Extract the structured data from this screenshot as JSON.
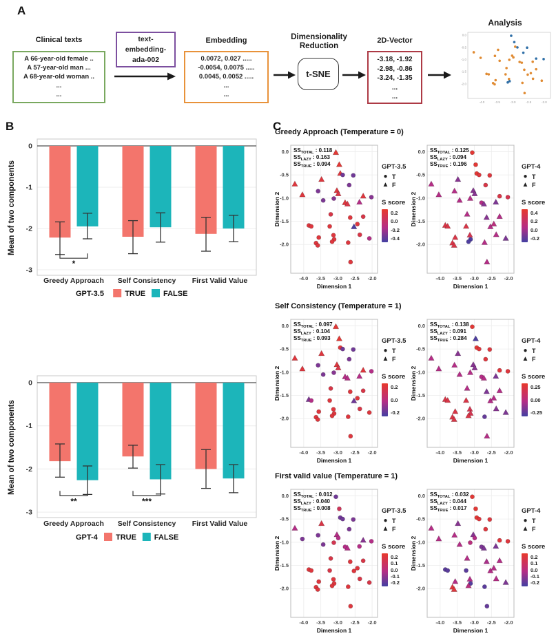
{
  "panel_a": {
    "label": "A",
    "clinical": {
      "title": "Clinical texts",
      "lines": [
        "A 66-year-old female ..",
        "A 57-year-old man ...",
        "A 68-year-old woman ..",
        "...",
        "..."
      ],
      "border": "#79a85f"
    },
    "model_box": {
      "lines": [
        "text-",
        "embedding-",
        "ada-002"
      ],
      "border": "#7c4f9f"
    },
    "embedding": {
      "title": "Embedding",
      "lines": [
        "0.0072, 0.027 .....",
        "-0.0054, 0.0075 .....",
        "0.0045, 0.0052 .....",
        "...",
        "..."
      ],
      "border": "#e8923a"
    },
    "dimred": {
      "line1": "Dimensionality",
      "line2": "Reduction",
      "box_label": "t-SNE"
    },
    "vector": {
      "title": "2D-Vector",
      "lines": [
        "-3.18, -1.92",
        "-2.98, -0.86",
        "-3.24, -1.35",
        "...",
        "..."
      ],
      "border": "#ad3a45"
    },
    "analysis_title": "Analysis"
  },
  "panel_b": {
    "label": "B"
  },
  "panel_c": {
    "label": "C",
    "legend_t": "T",
    "legend_f": "F",
    "score_title": "S score",
    "rows": [
      {
        "title": "Greedy Approach (Temperature = 0)"
      },
      {
        "title": "Self Consistency (Temperature = 1)"
      },
      {
        "title": "First valid value (Temperature = 1)"
      }
    ]
  },
  "shared_points": [
    [
      -3.06,
      -0.02
    ],
    [
      -2.96,
      -0.28
    ],
    [
      -2.93,
      -0.47
    ],
    [
      -2.86,
      -0.5
    ],
    [
      -2.55,
      -0.51
    ],
    [
      -4.26,
      -0.7
    ],
    [
      -3.48,
      -0.6
    ],
    [
      -2.67,
      -0.72
    ],
    [
      -4.04,
      -0.93
    ],
    [
      -3.58,
      -0.85
    ],
    [
      -3.03,
      -0.84
    ],
    [
      -2.99,
      -0.91
    ],
    [
      -3.12,
      -1.01
    ],
    [
      -3.43,
      -1.05
    ],
    [
      -2.26,
      -0.96
    ],
    [
      -2.02,
      -0.98
    ],
    [
      -2.79,
      -1.1
    ],
    [
      -2.72,
      -1.13
    ],
    [
      -2.37,
      -1.09
    ],
    [
      -3.21,
      -1.35
    ],
    [
      -2.64,
      -1.42
    ],
    [
      -2.26,
      -1.4
    ],
    [
      -3.85,
      -1.59
    ],
    [
      -3.78,
      -1.61
    ],
    [
      -3.24,
      -1.61
    ],
    [
      -2.53,
      -1.62
    ],
    [
      -2.43,
      -1.56
    ],
    [
      -3.56,
      -1.85
    ],
    [
      -3.13,
      -1.8
    ],
    [
      -3.11,
      -1.89
    ],
    [
      -2.36,
      -1.79
    ],
    [
      -3.17,
      -1.94
    ],
    [
      -2.7,
      -1.96
    ],
    [
      -3.64,
      -1.97
    ],
    [
      -3.59,
      -2.02
    ],
    [
      -2.08,
      -1.87
    ],
    [
      -2.63,
      -2.38
    ]
  ],
  "chart_data": [
    {
      "type": "bar",
      "model": "GPT-3.5",
      "ylabel": "Mean of two components",
      "categories": [
        "Greedy Approach",
        "Self Consistency",
        "First Valid Value"
      ],
      "yticks": [
        "0",
        "-1",
        "-2",
        "-3"
      ],
      "ylim": [
        0,
        -3
      ],
      "true_color": "#F3756C",
      "false_color": "#1CB5BA",
      "series": [
        {
          "name": "TRUE",
          "values": [
            -2.22,
            -2.2,
            -2.13
          ],
          "err_hi": [
            -1.84,
            -1.81,
            -1.73
          ],
          "err_lo": [
            -2.63,
            -2.61,
            -2.55
          ]
        },
        {
          "name": "FALSE",
          "values": [
            -1.95,
            -1.97,
            -2.0
          ],
          "err_hi": [
            -1.63,
            -1.62,
            -1.68
          ],
          "err_lo": [
            -2.25,
            -2.33,
            -2.32
          ]
        }
      ],
      "sig": [
        {
          "cat": 0,
          "label": "*",
          "y": -2.72
        }
      ],
      "geom": {
        "ppu": 60,
        "frame_bottom": 206,
        "cat_y": 217,
        "legend_y": 236
      }
    },
    {
      "type": "bar",
      "model": "GPT-4",
      "ylabel": "Mean of two components",
      "categories": [
        "Greedy Approach",
        "Self Consistency",
        "First Valid Value"
      ],
      "yticks": [
        "0",
        "-1",
        "-2",
        "-3"
      ],
      "ylim": [
        0,
        -3
      ],
      "true_color": "#F3756C",
      "false_color": "#1CB5BA",
      "series": [
        {
          "name": "TRUE",
          "values": [
            -1.82,
            -1.71,
            -2.0
          ],
          "err_hi": [
            -1.42,
            -1.45,
            -1.55
          ],
          "err_lo": [
            -2.19,
            -1.98,
            -2.45
          ]
        },
        {
          "name": "FALSE",
          "values": [
            -2.26,
            -2.24,
            -2.22
          ],
          "err_hi": [
            -1.93,
            -1.9,
            -1.9
          ],
          "err_lo": [
            -2.59,
            -2.58,
            -2.55
          ]
        }
      ],
      "sig": [
        {
          "cat": 0,
          "label": "**",
          "y": -2.62
        },
        {
          "cat": 1,
          "label": "***",
          "y": -2.62
        }
      ],
      "geom": {
        "ppu": 62.7,
        "frame_bottom": 214,
        "cat_y": 226,
        "legend_y": 246
      }
    },
    {
      "type": "scatter",
      "model": "GPT-3.5",
      "ss": [
        [
          "TOTAL",
          "0.118"
        ],
        [
          "LAZY",
          "0.163"
        ],
        [
          "TRUE",
          "0.094"
        ]
      ],
      "xlabel": "Dimension 1",
      "ylabel": "Dimension 2",
      "xticks": [
        "-4.0",
        "-3.5",
        "-3.0",
        "-2.5",
        "-2.0"
      ],
      "yticks": [
        "0.0",
        "-0.5",
        "-1.0",
        "-1.5",
        "-2.0"
      ],
      "xlim": [
        -4.38,
        -1.84
      ],
      "ylim": [
        0.14,
        -2.62
      ],
      "scale_labels": [
        "0.2",
        "0.0",
        "-0.2",
        "-0.4"
      ],
      "tri": [
        0,
        1,
        2,
        5,
        6,
        8,
        10,
        11,
        14,
        16,
        17,
        18,
        25
      ],
      "v": [
        0.95,
        0.95,
        0.9,
        0.2,
        0.2,
        0.9,
        0.9,
        0.25,
        0.9,
        0.25,
        0.9,
        0.85,
        0.3,
        0.25,
        0.9,
        0.3,
        0.9,
        0.85,
        0.5,
        0.85,
        0.9,
        0.85,
        0.9,
        0.9,
        0.9,
        0.05,
        0.9,
        0.9,
        0.9,
        0.9,
        0.85,
        0.9,
        0.9,
        0.9,
        0.9,
        0.5,
        0.9
      ]
    },
    {
      "type": "scatter",
      "model": "GPT-4",
      "ss": [
        [
          "TOTAL",
          "0.125"
        ],
        [
          "LAZY",
          "0.094"
        ],
        [
          "TRUE",
          "0.196"
        ]
      ],
      "xlabel": "Dimension 1",
      "ylabel": "Dimension 2",
      "xticks": [
        "-4.0",
        "-3.5",
        "-3.0",
        "-2.5",
        "-2.0"
      ],
      "yticks": [
        "0.0",
        "-0.5",
        "-1.0",
        "-1.5",
        "-2.0"
      ],
      "xlim": [
        -4.38,
        -1.84
      ],
      "ylim": [
        0.14,
        -2.62
      ],
      "scale_labels": [
        "0.4",
        "0.2",
        "0.0",
        "-0.2"
      ],
      "tri": [
        5,
        6,
        8,
        9,
        10,
        11,
        12,
        13,
        17,
        18,
        19,
        20,
        21,
        22,
        23,
        24,
        25,
        26,
        27,
        28,
        30,
        32,
        33,
        34,
        35,
        36
      ],
      "v": [
        0.95,
        0.95,
        0.95,
        0.9,
        0.9,
        0.5,
        0.3,
        0.85,
        0.5,
        0.5,
        0.3,
        0.3,
        0.5,
        0.5,
        0.85,
        0.8,
        0.5,
        0.3,
        0.25,
        0.5,
        0.3,
        0.5,
        0.85,
        0.85,
        0.85,
        0.5,
        0.55,
        0.85,
        0.8,
        0.05,
        0.5,
        0.05,
        0.5,
        0.85,
        0.85,
        0.25,
        0.5
      ]
    },
    {
      "type": "scatter",
      "model": "GPT-3.5",
      "ss": [
        [
          "TOTAL",
          "0.097"
        ],
        [
          "LAZY",
          "0.104"
        ],
        [
          "TRUE",
          "0.093"
        ]
      ],
      "xlabel": "Dimension 1",
      "ylabel": "Dimension 2",
      "xticks": [
        "-4.0",
        "-3.5",
        "-3.0",
        "-2.5",
        "-2.0"
      ],
      "yticks": [
        "0.0",
        "-0.5",
        "-1.0",
        "-1.5",
        "-2.0"
      ],
      "xlim": [
        -4.38,
        -1.84
      ],
      "ylim": [
        0.14,
        -2.62
      ],
      "scale_labels": [
        "0.2",
        "0.0",
        "-0.2"
      ],
      "tri": [
        0,
        1,
        5,
        6,
        8,
        10,
        11,
        14,
        16,
        17,
        18,
        22,
        25
      ],
      "v": [
        0.95,
        0.95,
        0.9,
        0.2,
        0.2,
        0.9,
        0.9,
        0.25,
        0.9,
        0.25,
        0.9,
        0.85,
        0.3,
        0.25,
        0.9,
        0.5,
        0.5,
        0.5,
        0.5,
        0.85,
        0.9,
        0.85,
        0.25,
        0.5,
        0.9,
        0.2,
        0.9,
        0.9,
        0.9,
        0.9,
        0.85,
        0.9,
        0.9,
        0.9,
        0.9,
        0.9,
        0.9
      ]
    },
    {
      "type": "scatter",
      "model": "GPT-4",
      "ss": [
        [
          "TOTAL",
          "0.138"
        ],
        [
          "LAZY",
          "0.091"
        ],
        [
          "TRUE",
          "0.284"
        ]
      ],
      "xlabel": "Dimension 1",
      "ylabel": "Dimension 2",
      "xticks": [
        "-4.0",
        "-3.5",
        "-3.0",
        "-2.5",
        "-2.0"
      ],
      "yticks": [
        "0.0",
        "-0.5",
        "-1.0",
        "-1.5",
        "-2.0"
      ],
      "xlim": [
        -4.38,
        -1.84
      ],
      "ylim": [
        0.14,
        -2.62
      ],
      "scale_labels": [
        "0.25",
        "0.00",
        "-0.25"
      ],
      "tri": [
        1,
        5,
        6,
        8,
        9,
        10,
        11,
        12,
        13,
        17,
        18,
        19,
        20,
        21,
        22,
        23,
        24,
        25,
        26,
        27,
        28,
        29,
        30,
        31,
        33,
        34,
        35,
        36
      ],
      "v": [
        0.95,
        0.05,
        0.95,
        0.9,
        0.9,
        0.5,
        0.3,
        0.9,
        0.5,
        0.5,
        0.3,
        0.3,
        0.5,
        0.5,
        0.9,
        0.9,
        0.5,
        0.5,
        0.25,
        0.5,
        0.25,
        0.5,
        0.85,
        0.85,
        0.85,
        0.5,
        0.5,
        0.85,
        0.8,
        0.8,
        0.3,
        0.85,
        0.15,
        0.85,
        0.85,
        0.25,
        0.5
      ]
    },
    {
      "type": "scatter",
      "model": "GPT-3.5",
      "ss": [
        [
          "TOTAL",
          "0.012"
        ],
        [
          "LAZY",
          "0.040"
        ],
        [
          "TRUE",
          "0.008"
        ]
      ],
      "xlabel": "Dimension 1",
      "ylabel": "Dimension 2",
      "xticks": [
        "-4.0",
        "-3.5",
        "-3.0",
        "-2.5",
        "-2.0"
      ],
      "yticks": [
        "0.0",
        "-0.5",
        "-1.0",
        "-1.5",
        "-2.0"
      ],
      "xlim": [
        -4.38,
        -1.84
      ],
      "ylim": [
        0.14,
        -2.62
      ],
      "scale_labels": [
        "0.2",
        "0.1",
        "0.0",
        "-0.1",
        "-0.2"
      ],
      "tri": [
        5,
        6,
        10,
        14,
        17
      ],
      "v": [
        0.2,
        0.75,
        0.2,
        0.2,
        0.25,
        0.5,
        0.85,
        0.25,
        0.25,
        0.25,
        0.5,
        0.5,
        0.8,
        0.25,
        0.3,
        0.5,
        0.5,
        0.5,
        0.5,
        0.85,
        0.9,
        0.85,
        0.9,
        0.9,
        0.85,
        0.9,
        0.9,
        0.9,
        0.9,
        0.9,
        0.85,
        0.9,
        0.9,
        0.9,
        0.9,
        0.85,
        0.9
      ]
    },
    {
      "type": "scatter",
      "model": "GPT-4",
      "ss": [
        [
          "TOTAL",
          "0.032"
        ],
        [
          "LAZY",
          "0.044"
        ],
        [
          "TRUE",
          "0.017"
        ]
      ],
      "xlabel": "Dimension 1",
      "ylabel": "Dimension 2",
      "xticks": [
        "-4.0",
        "-3.5",
        "-3.0",
        "-2.5",
        "-2.0"
      ],
      "yticks": [
        "0.0",
        "-0.5",
        "-1.0",
        "-1.5",
        "-2.0"
      ],
      "xlim": [
        -4.38,
        -1.84
      ],
      "ylim": [
        0.14,
        -2.62
      ],
      "scale_labels": [
        "0.2",
        "0.1",
        "0.0",
        "-0.1",
        "-0.2"
      ],
      "tri": [
        5,
        6,
        8,
        9,
        10,
        13,
        17,
        18,
        19,
        20,
        21,
        25,
        26,
        27,
        28,
        30,
        31,
        33,
        34,
        35
      ],
      "v": [
        0.95,
        0.95,
        0.95,
        0.9,
        0.9,
        0.5,
        0.3,
        0.9,
        0.5,
        0.5,
        0.3,
        0.5,
        0.55,
        0.5,
        0.9,
        0.9,
        0.25,
        0.25,
        0.25,
        0.5,
        0.45,
        0.5,
        0.1,
        0.1,
        0.1,
        0.5,
        0.5,
        0.5,
        0.5,
        0.08,
        0.5,
        0.55,
        0.1,
        0.9,
        0.9,
        0.25,
        0.15
      ]
    },
    {
      "type": "mini",
      "blue": [
        0,
        1,
        3,
        4,
        7,
        14,
        15,
        29,
        31
      ],
      "blue_color": "#2f6fa7",
      "orange_color": "#e08b33",
      "xticks": [
        "-4.0",
        "-3.5",
        "-3.0",
        "-2.5",
        "-2.0"
      ],
      "yticks": [
        "0.0",
        "-0.5",
        "-1.0",
        "-1.5",
        "-2.0"
      ],
      "xlim": [
        -4.45,
        -1.8
      ],
      "ylim": [
        0.12,
        -2.6
      ]
    }
  ]
}
